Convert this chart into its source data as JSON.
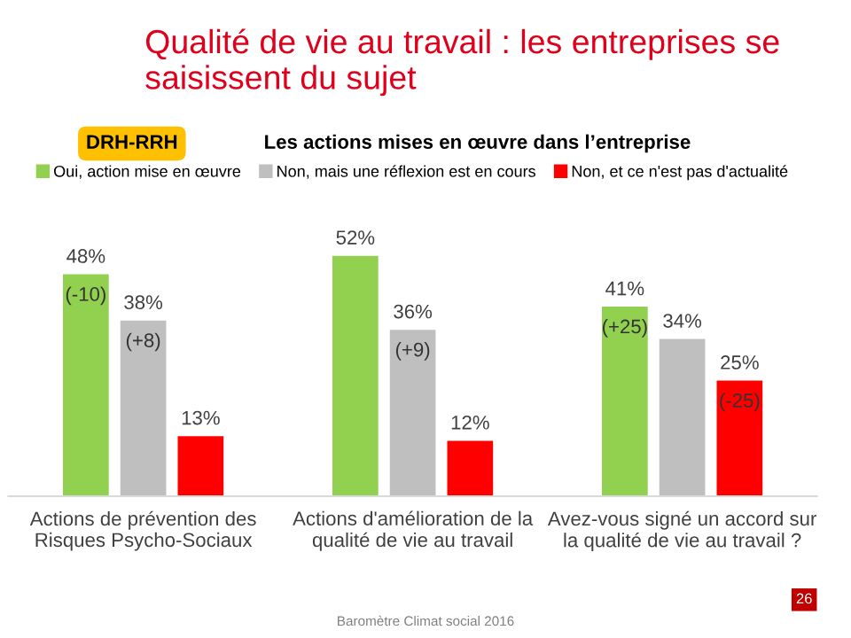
{
  "chart_data": {
    "type": "bar",
    "title": "Qualité de vie au travail : les entreprises se saisissent du sujet",
    "subtitle": "Les actions mises en œuvre dans l’entreprise",
    "categories": [
      "Actions de prévention des Risques Psycho-Sociaux",
      "Actions d'amélioration de la qualité de vie au travail",
      "Avez-vous signé un accord sur la qualité de vie au travail ?"
    ],
    "series": [
      {
        "name": "Oui, action mise en œuvre",
        "color": "#92d050",
        "values": [
          48,
          52,
          41
        ],
        "value_labels": [
          "48%\n(-10)",
          "52%",
          "41%\n(+25)"
        ]
      },
      {
        "name": "Non, mais une réflexion est en cours",
        "color": "#bfbfbf",
        "values": [
          38,
          36,
          34
        ],
        "value_labels": [
          "38%\n(+8)",
          "36%\n(+9)",
          "34%"
        ]
      },
      {
        "name": "Non, et ce n'est pas d'actualité",
        "color": "#ff0000",
        "values": [
          13,
          12,
          25
        ],
        "value_labels": [
          "13%",
          "12%",
          "25%\n(-25)"
        ]
      }
    ],
    "annotations": [
      "DRH-RRH",
      "Baromètre Climat social 2016",
      "26"
    ],
    "legend": "top",
    "grid": false
  }
}
